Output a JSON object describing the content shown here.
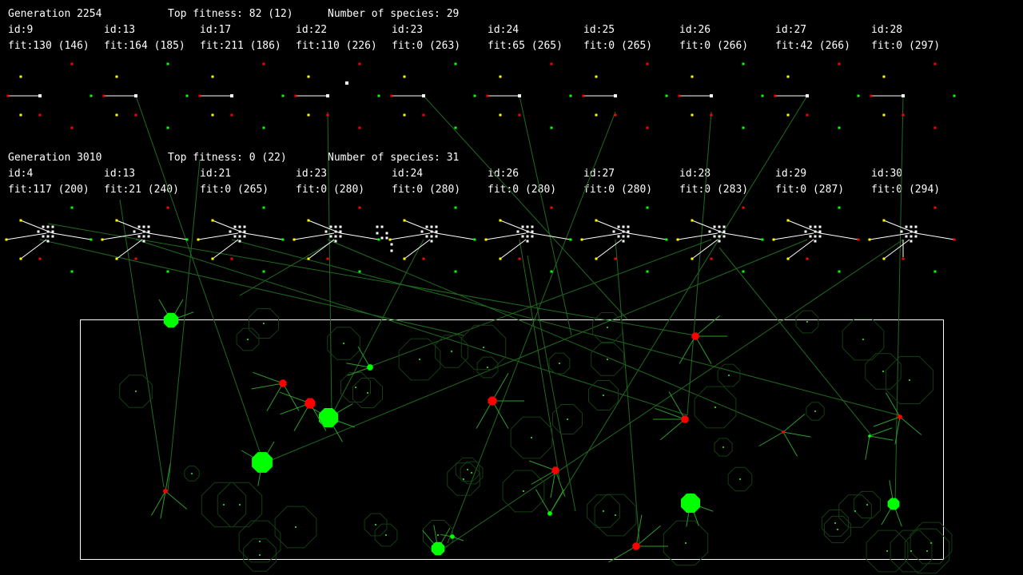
{
  "gen_panels": [
    {
      "generation": "Generation 2254",
      "top_fitness": "Top fitness: 82 (12)",
      "species_count": "Number of species: 29",
      "species": [
        {
          "id": "id:9",
          "fit": "fit:130 (146)"
        },
        {
          "id": "id:13",
          "fit": "fit:164 (185)"
        },
        {
          "id": "id:17",
          "fit": "fit:211 (186)"
        },
        {
          "id": "id:22",
          "fit": "fit:110 (226)"
        },
        {
          "id": "id:23",
          "fit": "fit:0 (263)"
        },
        {
          "id": "id:24",
          "fit": "fit:65 (265)"
        },
        {
          "id": "id:25",
          "fit": "fit:0 (265)"
        },
        {
          "id": "id:26",
          "fit": "fit:0 (266)"
        },
        {
          "id": "id:27",
          "fit": "fit:42 (266)"
        },
        {
          "id": "id:28",
          "fit": "fit:0 (297)"
        }
      ]
    },
    {
      "generation": "Generation 3010",
      "top_fitness": "Top fitness: 0 (22)",
      "species_count": "Number of species: 31",
      "species": [
        {
          "id": "id:4",
          "fit": "fit:117 (200)"
        },
        {
          "id": "id:13",
          "fit": "fit:21 (240)"
        },
        {
          "id": "id:21",
          "fit": "fit:0 (265)"
        },
        {
          "id": "id:23",
          "fit": "fit:0 (280)"
        },
        {
          "id": "id:24",
          "fit": "fit:0 (280)"
        },
        {
          "id": "id:26",
          "fit": "fit:0 (280)"
        },
        {
          "id": "id:27",
          "fit": "fit:0 (280)"
        },
        {
          "id": "id:28",
          "fit": "fit:0 (283)"
        },
        {
          "id": "id:29",
          "fit": "fit:0 (287)"
        },
        {
          "id": "id:30",
          "fit": "fit:0 (294)"
        }
      ]
    }
  ],
  "colors": {
    "background": "#000000",
    "text": "#ffffff",
    "food": "#00ff00",
    "predator": "#ff0000",
    "input_node": "#ffff00",
    "hidden_node": "#ffffff",
    "arena_border": "#ffffff",
    "sensor_line": "#2e8b2e"
  }
}
